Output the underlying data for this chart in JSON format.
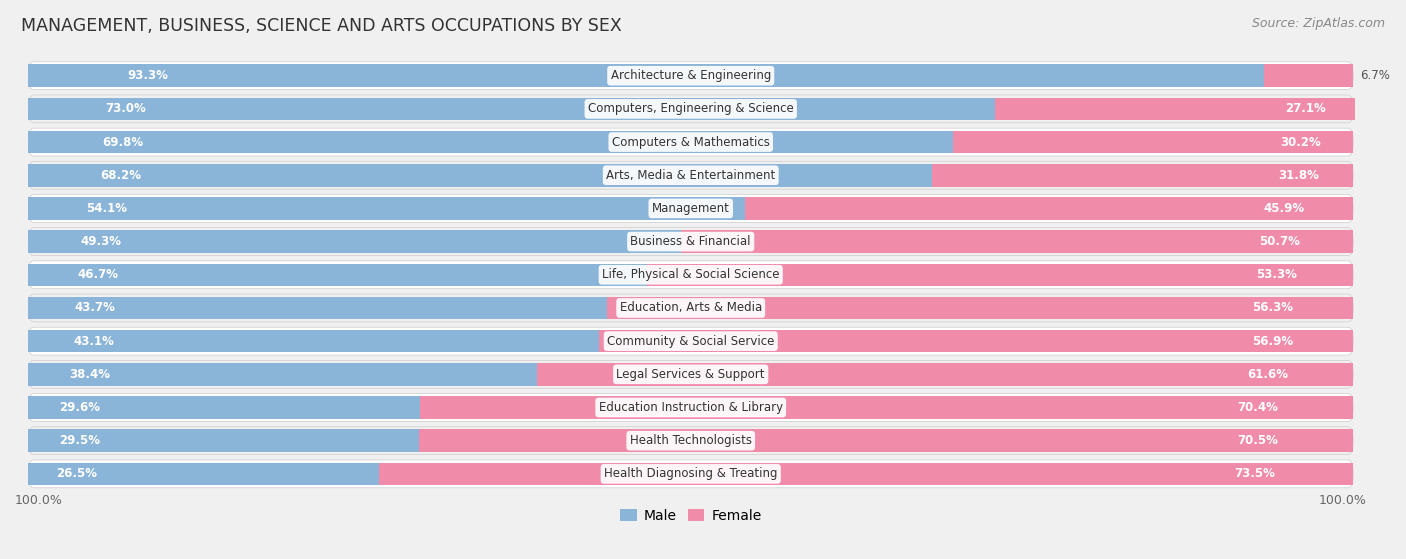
{
  "title": "MANAGEMENT, BUSINESS, SCIENCE AND ARTS OCCUPATIONS BY SEX",
  "source": "Source: ZipAtlas.com",
  "categories": [
    "Architecture & Engineering",
    "Computers, Engineering & Science",
    "Computers & Mathematics",
    "Arts, Media & Entertainment",
    "Management",
    "Business & Financial",
    "Life, Physical & Social Science",
    "Education, Arts & Media",
    "Community & Social Service",
    "Legal Services & Support",
    "Education Instruction & Library",
    "Health Technologists",
    "Health Diagnosing & Treating"
  ],
  "male_pct": [
    93.3,
    73.0,
    69.8,
    68.2,
    54.1,
    49.3,
    46.7,
    43.7,
    43.1,
    38.4,
    29.6,
    29.5,
    26.5
  ],
  "female_pct": [
    6.7,
    27.1,
    30.2,
    31.8,
    45.9,
    50.7,
    53.3,
    56.3,
    56.9,
    61.6,
    70.4,
    70.5,
    73.5
  ],
  "male_color": "#8ab4d8",
  "female_color": "#f08caa",
  "bg_color": "#f0f0f0",
  "row_bg_color": "#e8e8e8",
  "bar_row_colors": [
    "#ffffff",
    "#f0f0f0"
  ],
  "label_inside_color": "white",
  "label_outside_color": "#555555",
  "label_inside_threshold": 12,
  "axis_label_left": "100.0%",
  "axis_label_right": "100.0%",
  "legend_male": "Male",
  "legend_female": "Female"
}
